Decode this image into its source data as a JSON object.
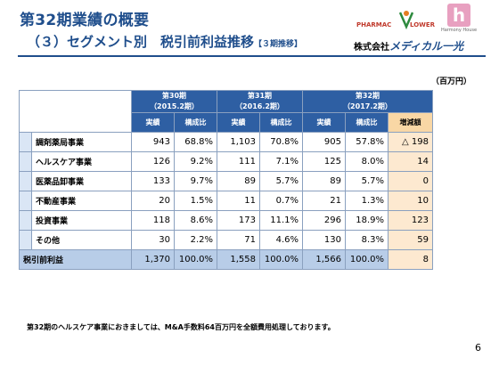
{
  "header": {
    "title_line1": "第32期業績の概要",
    "title_line2": "（３）セグメント別　税引前利益推移",
    "title_line2_small": "【３期推移】",
    "logo_pharmacy_text_left": "PHARMAC",
    "logo_pharmacy_text_right": "LOWER",
    "logo_harmony_letter": "h",
    "logo_harmony_text": "Harmony House",
    "company_prefix": "株式会社",
    "company_brand": "メディカル一光"
  },
  "unit_label": "（百万円）",
  "table": {
    "periods": [
      {
        "name": "第30期",
        "sub": "（2015.2期）"
      },
      {
        "name": "第31期",
        "sub": "（2016.2期）"
      },
      {
        "name": "第32期",
        "sub": "（2017.2期）"
      }
    ],
    "col_actual": "実績",
    "col_ratio": "構成比",
    "col_diff": "増減額",
    "rows": [
      {
        "label": "調剤薬局事業",
        "v": [
          "943",
          "68.8%",
          "1,103",
          "70.8%",
          "905",
          "57.8%",
          "△ 198"
        ]
      },
      {
        "label": "ヘルスケア事業",
        "v": [
          "126",
          "9.2%",
          "111",
          "7.1%",
          "125",
          "8.0%",
          "14"
        ]
      },
      {
        "label": "医薬品卸事業",
        "v": [
          "133",
          "9.7%",
          "89",
          "5.7%",
          "89",
          "5.7%",
          "0"
        ]
      },
      {
        "label": "不動産事業",
        "v": [
          "20",
          "1.5%",
          "11",
          "0.7%",
          "21",
          "1.3%",
          "10"
        ]
      },
      {
        "label": "投資事業",
        "v": [
          "118",
          "8.6%",
          "173",
          "11.1%",
          "296",
          "18.9%",
          "123"
        ]
      },
      {
        "label": "その他",
        "v": [
          "30",
          "2.2%",
          "71",
          "4.6%",
          "130",
          "8.3%",
          "59"
        ]
      }
    ],
    "total": {
      "label": "税引前利益",
      "v": [
        "1,370",
        "100.0%",
        "1,558",
        "100.0%",
        "1,566",
        "100.0%",
        "8"
      ]
    }
  },
  "note": "第32期のヘルスケア事業におきましては、M&A手数料64百万円を全額費用処理しております。",
  "page_number": "6",
  "colors": {
    "title_blue": "#1f4e8c",
    "header_blue": "#2e5fa3",
    "total_row": "#b8cde8",
    "diff_header": "#f9d7a5",
    "diff_cell": "#fde9d0"
  }
}
